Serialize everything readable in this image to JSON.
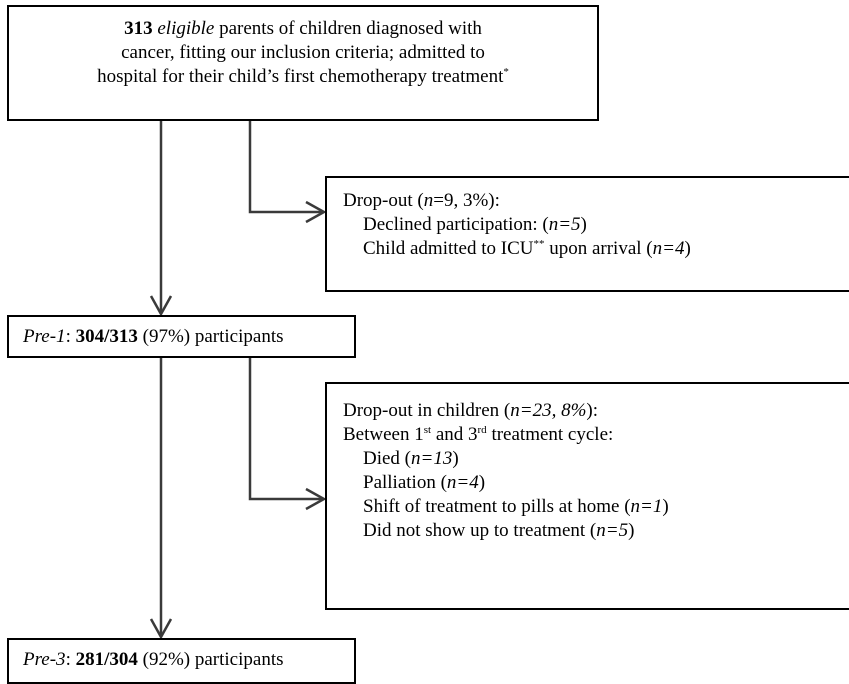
{
  "nodes": [
    {
      "parts": [
        "313",
        "eligible",
        "parents of children diagnosed with",
        "cancer, fitting our inclusion criteria; admitted to",
        "hospital for their child’s first chemotherapy treatment",
        "*"
      ]
    },
    {
      "lines": [
        [
          "Drop-out (",
          "n",
          "=9, 3%):"
        ],
        [
          "Declined participation: (",
          "n=5",
          ")"
        ],
        [
          "Child admitted to ICU",
          "**",
          "upon arrival (",
          "n=4",
          ")"
        ]
      ]
    },
    {
      "parts": [
        "Pre-1",
        ":",
        "304/313",
        "(97%) participants"
      ]
    },
    {
      "lines": [
        [
          "Drop-out in children (",
          "n=23, 8%",
          "):"
        ],
        [
          "Between 1",
          "st",
          "and 3",
          "rd",
          "treatment cycle:"
        ],
        [
          "Died (",
          "n=13",
          ")"
        ],
        [
          "Palliation (",
          "n=4",
          ")"
        ],
        [
          "Shift of treatment to pills at home (",
          "n=1",
          ")"
        ],
        [
          "Did not show up to treatment (",
          "n=5",
          ")"
        ]
      ]
    },
    {
      "parts": [
        "Pre-3",
        ":",
        "281/304",
        "(92%) participants"
      ]
    }
  ]
}
